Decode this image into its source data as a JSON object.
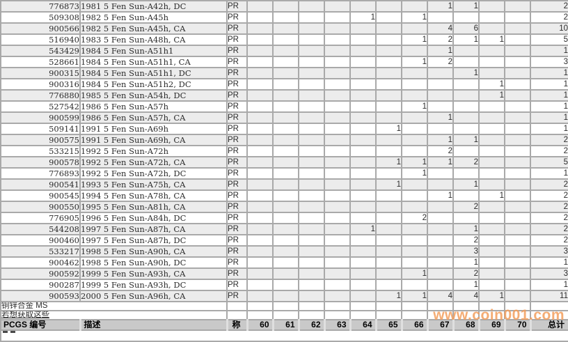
{
  "table": {
    "header": {
      "pcgs_label": "PCGS 编号",
      "desc_label": "描述",
      "designation_label": "称",
      "total_label": "总计",
      "grades": [
        "60",
        "61",
        "62",
        "63",
        "64",
        "65",
        "66",
        "67",
        "68",
        "69",
        "70"
      ]
    },
    "rows": [
      {
        "pcgs": "776873",
        "desc": "1981 5 Fen Sun-A42h, DC",
        "designation": "PR",
        "grades": [
          "",
          "",
          "",
          "",
          "",
          "",
          "",
          "1",
          "1",
          "",
          ""
        ],
        "total": "2"
      },
      {
        "pcgs": "509308",
        "desc": "1982 5 Fen Sun-A45h",
        "designation": "PR",
        "grades": [
          "",
          "",
          "",
          "",
          "1",
          "",
          "1",
          "",
          "",
          "",
          ""
        ],
        "total": "2"
      },
      {
        "pcgs": "900566",
        "desc": "1982 5 Fen Sun-A45h, CA",
        "designation": "PR",
        "grades": [
          "",
          "",
          "",
          "",
          "",
          "",
          "",
          "4",
          "6",
          "",
          ""
        ],
        "total": "10"
      },
      {
        "pcgs": "516940",
        "desc": "1983 5 Fen Sun-A48h, CA",
        "designation": "PR",
        "grades": [
          "",
          "",
          "",
          "",
          "",
          "",
          "1",
          "2",
          "1",
          "1",
          ""
        ],
        "total": "5"
      },
      {
        "pcgs": "543429",
        "desc": "1984 5 Fen Sun-A51h1",
        "designation": "PR",
        "grades": [
          "",
          "",
          "",
          "",
          "",
          "",
          "",
          "1",
          "",
          "",
          ""
        ],
        "total": "1"
      },
      {
        "pcgs": "528661",
        "desc": "1984 5 Fen Sun-A51h1, CA",
        "designation": "PR",
        "grades": [
          "",
          "",
          "",
          "",
          "",
          "",
          "1",
          "2",
          "",
          "",
          ""
        ],
        "total": "3"
      },
      {
        "pcgs": "900315",
        "desc": "1984 5 Fen Sun-A51h1, DC",
        "designation": "PR",
        "grades": [
          "",
          "",
          "",
          "",
          "",
          "",
          "",
          "",
          "1",
          "",
          ""
        ],
        "total": "1"
      },
      {
        "pcgs": "900316",
        "desc": "1984 5 Fen Sun-A51h2, DC",
        "designation": "PR",
        "grades": [
          "",
          "",
          "",
          "",
          "",
          "",
          "",
          "",
          "",
          "1",
          ""
        ],
        "total": "1"
      },
      {
        "pcgs": "776880",
        "desc": "1985 5 Fen Sun-A54h, DC",
        "designation": "PR",
        "grades": [
          "",
          "",
          "",
          "",
          "",
          "",
          "",
          "",
          "",
          "1",
          ""
        ],
        "total": "1"
      },
      {
        "pcgs": "527542",
        "desc": "1986 5 Fen Sun-A57h",
        "designation": "PR",
        "grades": [
          "",
          "",
          "",
          "",
          "",
          "",
          "1",
          "",
          "",
          "",
          ""
        ],
        "total": "1"
      },
      {
        "pcgs": "900599",
        "desc": "1986 5 Fen Sun-A57h, CA",
        "designation": "PR",
        "grades": [
          "",
          "",
          "",
          "",
          "",
          "",
          "",
          "1",
          "",
          "",
          ""
        ],
        "total": "1"
      },
      {
        "pcgs": "509141",
        "desc": "1991 5 Fen Sun-A69h",
        "designation": "PR",
        "grades": [
          "",
          "",
          "",
          "",
          "",
          "1",
          "",
          "",
          "",
          "",
          ""
        ],
        "total": "1"
      },
      {
        "pcgs": "900575",
        "desc": "1991 5 Fen Sun-A69h, CA",
        "designation": "PR",
        "grades": [
          "",
          "",
          "",
          "",
          "",
          "",
          "",
          "1",
          "1",
          "",
          ""
        ],
        "total": "2"
      },
      {
        "pcgs": "533215",
        "desc": "1992 5 Fen Sun-A72h",
        "designation": "PR",
        "grades": [
          "",
          "",
          "",
          "",
          "",
          "",
          "",
          "2",
          "",
          "",
          ""
        ],
        "total": "2"
      },
      {
        "pcgs": "900578",
        "desc": "1992 5 Fen Sun-A72h, CA",
        "designation": "PR",
        "grades": [
          "",
          "",
          "",
          "",
          "",
          "1",
          "1",
          "1",
          "2",
          "",
          ""
        ],
        "total": "5"
      },
      {
        "pcgs": "776893",
        "desc": "1992 5 Fen Sun-A72h, DC",
        "designation": "PR",
        "grades": [
          "",
          "",
          "",
          "",
          "",
          "",
          "1",
          "",
          "",
          "",
          ""
        ],
        "total": "1"
      },
      {
        "pcgs": "900541",
        "desc": "1993 5 Fen Sun-A75h, CA",
        "designation": "PR",
        "grades": [
          "",
          "",
          "",
          "",
          "",
          "1",
          "",
          "",
          "1",
          "",
          ""
        ],
        "total": "2"
      },
      {
        "pcgs": "900545",
        "desc": "1994 5 Fen Sun-A78h, CA",
        "designation": "PR",
        "grades": [
          "",
          "",
          "",
          "",
          "",
          "",
          "",
          "1",
          "",
          "1",
          ""
        ],
        "total": "2"
      },
      {
        "pcgs": "900550",
        "desc": "1995 5 Fen Sun-A81h, CA",
        "designation": "PR",
        "grades": [
          "",
          "",
          "",
          "",
          "",
          "",
          "",
          "",
          "2",
          "",
          ""
        ],
        "total": "2"
      },
      {
        "pcgs": "776905",
        "desc": "1996 5 Fen Sun-A84h, DC",
        "designation": "PR",
        "grades": [
          "",
          "",
          "",
          "",
          "",
          "",
          "2",
          "",
          "",
          "",
          ""
        ],
        "total": "2"
      },
      {
        "pcgs": "544208",
        "desc": "1997 5 Fen Sun-A87h, CA",
        "designation": "PR",
        "grades": [
          "",
          "",
          "",
          "",
          "1",
          "",
          "",
          "",
          "1",
          "",
          ""
        ],
        "total": "2"
      },
      {
        "pcgs": "900460",
        "desc": "1997 5 Fen Sun-A87h, DC",
        "designation": "PR",
        "grades": [
          "",
          "",
          "",
          "",
          "",
          "",
          "",
          "",
          "2",
          "",
          ""
        ],
        "total": "2"
      },
      {
        "pcgs": "533217",
        "desc": "1998 5 Fen Sun-A90h, CA",
        "designation": "PR",
        "grades": [
          "",
          "",
          "",
          "",
          "",
          "",
          "",
          "",
          "3",
          "",
          ""
        ],
        "total": "3"
      },
      {
        "pcgs": "900462",
        "desc": "1998 5 Fen Sun-A90h, DC",
        "designation": "PR",
        "grades": [
          "",
          "",
          "",
          "",
          "",
          "",
          "",
          "",
          "1",
          "",
          ""
        ],
        "total": "1"
      },
      {
        "pcgs": "900592",
        "desc": "1999 5 Fen Sun-A93h, CA",
        "designation": "PR",
        "grades": [
          "",
          "",
          "",
          "",
          "",
          "",
          "1",
          "",
          "2",
          "",
          ""
        ],
        "total": "3"
      },
      {
        "pcgs": "900287",
        "desc": "1999 5 Fen Sun-A93h, DC",
        "designation": "PR",
        "grades": [
          "",
          "",
          "",
          "",
          "",
          "",
          "",
          "",
          "1",
          "",
          ""
        ],
        "total": "1"
      },
      {
        "pcgs": "900593",
        "desc": "2000 5 Fen Sun-A96h, CA",
        "designation": "PR",
        "grades": [
          "",
          "",
          "",
          "",
          "",
          "1",
          "1",
          "4",
          "4",
          "1",
          ""
        ],
        "total": "11"
      }
    ],
    "section_row": {
      "label": "铜锌合金  MS"
    },
    "link_row": {
      "label": "若想获取这些"
    }
  },
  "watermark": {
    "text": "www.coin001.com",
    "color": "#F29E5C"
  },
  "colors": {
    "link_blue": "#3333cc",
    "row_alt_gray": "#ececec",
    "header_gray": "#c9c9c9",
    "grid_gray": "#a9a9a9"
  }
}
